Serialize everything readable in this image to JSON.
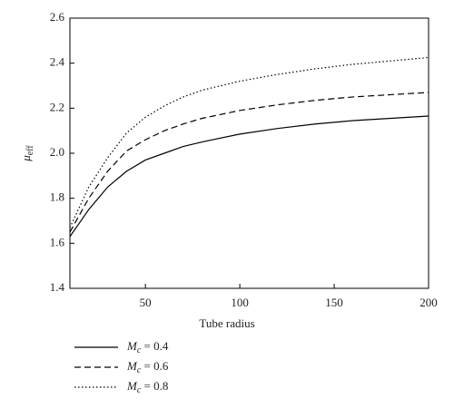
{
  "chart_data": {
    "type": "line",
    "xlabel": "Tube radius",
    "ylabel": "μeff",
    "x": [
      10,
      20,
      30,
      40,
      50,
      60,
      70,
      80,
      100,
      120,
      140,
      160,
      180,
      200
    ],
    "series": [
      {
        "name": "Mc = 0.4",
        "color": "#000000",
        "dash": "solid",
        "values": [
          1.63,
          1.75,
          1.85,
          1.92,
          1.97,
          2.0,
          2.03,
          2.05,
          2.085,
          2.11,
          2.13,
          2.145,
          2.155,
          2.165
        ]
      },
      {
        "name": "Mc = 0.6",
        "color": "#000000",
        "dash": "dashed",
        "values": [
          1.65,
          1.8,
          1.92,
          2.01,
          2.06,
          2.1,
          2.13,
          2.155,
          2.19,
          2.215,
          2.235,
          2.25,
          2.26,
          2.27
        ]
      },
      {
        "name": "Mc = 0.8",
        "color": "#000000",
        "dash": "dotted",
        "values": [
          1.67,
          1.85,
          1.98,
          2.09,
          2.16,
          2.21,
          2.25,
          2.28,
          2.32,
          2.35,
          2.375,
          2.395,
          2.41,
          2.425
        ]
      }
    ],
    "xlim": [
      10,
      200
    ],
    "xticks": [
      50,
      100,
      150,
      200
    ],
    "ylim": [
      1.4,
      2.6
    ],
    "yticks": [
      1.4,
      1.6,
      1.8,
      {
        "value": 2,
        "label": "2.0"
      },
      2.2,
      2.4,
      2.6
    ],
    "legend": "below"
  }
}
